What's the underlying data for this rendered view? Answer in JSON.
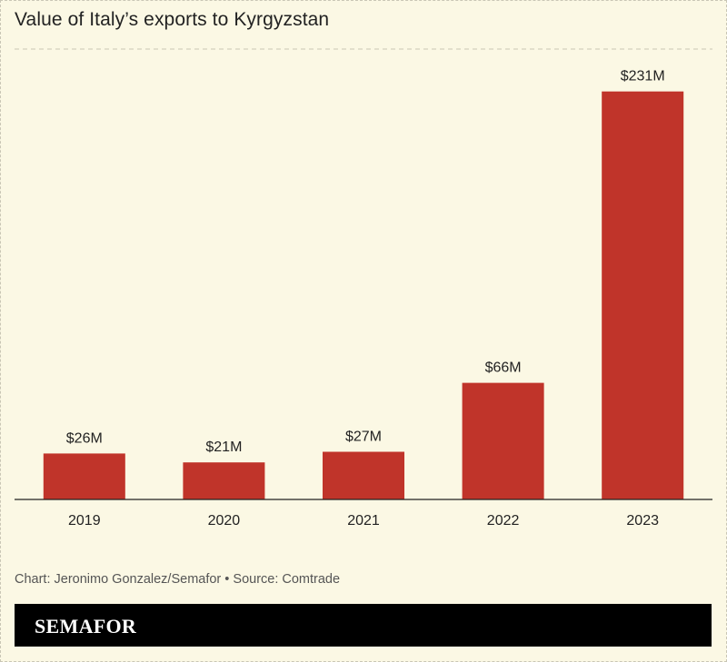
{
  "chart_data": {
    "type": "bar",
    "title": "Value of Italy’s exports to Kyrgyzstan",
    "categories": [
      "2019",
      "2020",
      "2021",
      "2022",
      "2023"
    ],
    "values": [
      26,
      21,
      27,
      66,
      231
    ],
    "data_labels": [
      "$26M",
      "$21M",
      "$27M",
      "$66M",
      "$231M"
    ],
    "unit": "$M",
    "ylim": [
      0,
      255
    ],
    "grid": true,
    "bar_color": "#c0342a"
  },
  "footer": {
    "credit": "Chart: Jeronimo Gonzalez/Semafor • Source: Comtrade",
    "logo": "SEMAFOR"
  }
}
